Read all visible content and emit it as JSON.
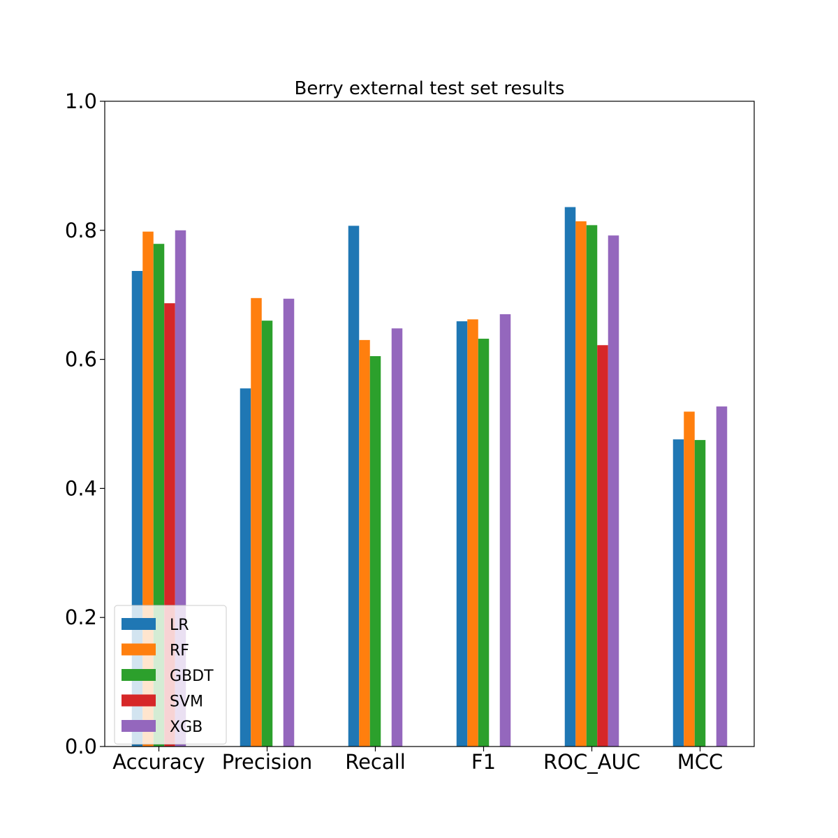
{
  "chart_data": {
    "type": "bar",
    "title": "Berry external test set results",
    "xlabel": "",
    "ylabel": "",
    "ylim": [
      0,
      1.0
    ],
    "yticks": [
      "0.0",
      "0.2",
      "0.4",
      "0.6",
      "0.8",
      "1.0"
    ],
    "categories": [
      "Accuracy",
      "Precision",
      "Recall",
      "F1",
      "ROC_AUC",
      "MCC"
    ],
    "series": [
      {
        "name": "LR",
        "color": "#1f77b4",
        "values": [
          0.737,
          0.555,
          0.807,
          0.659,
          0.836,
          0.476
        ]
      },
      {
        "name": "RF",
        "color": "#ff7f0e",
        "values": [
          0.798,
          0.695,
          0.63,
          0.662,
          0.814,
          0.519
        ]
      },
      {
        "name": "GBDT",
        "color": "#2ca02c",
        "values": [
          0.779,
          0.66,
          0.605,
          0.632,
          0.808,
          0.475
        ]
      },
      {
        "name": "SVM",
        "color": "#d62728",
        "values": [
          0.687,
          0.0,
          0.0,
          0.0,
          0.622,
          0.0
        ]
      },
      {
        "name": "XGB",
        "color": "#9467bd",
        "values": [
          0.8,
          0.694,
          0.648,
          0.67,
          0.792,
          0.527
        ]
      }
    ],
    "grid": false,
    "legend_position": "lower-left"
  }
}
